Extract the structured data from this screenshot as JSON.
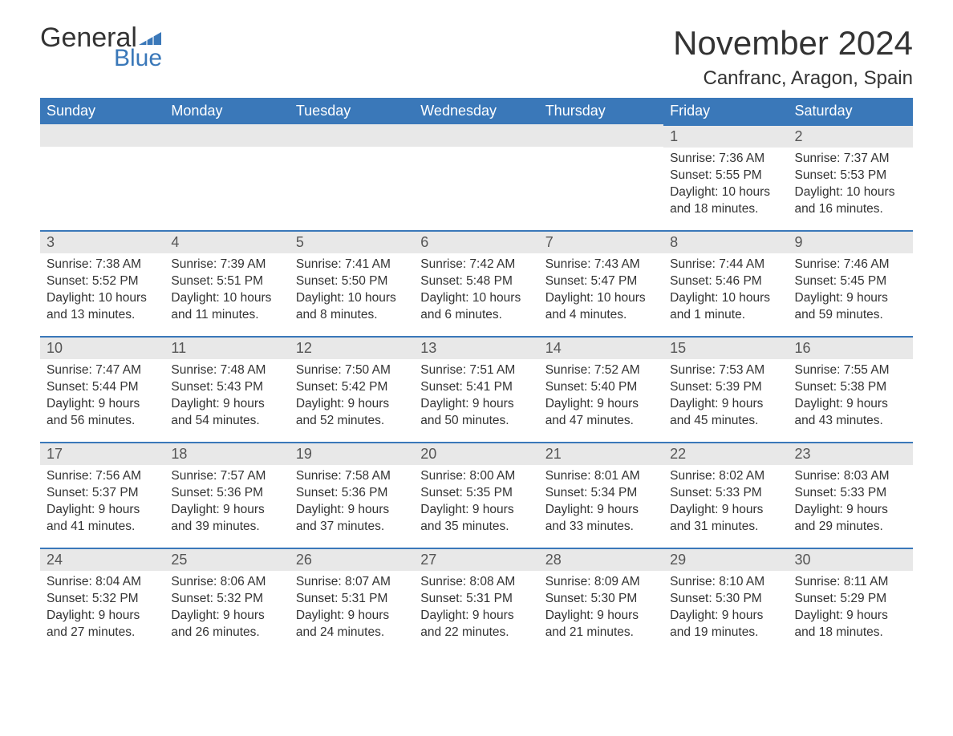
{
  "brand": {
    "word1": "General",
    "word2": "Blue",
    "text_color": "#333333",
    "accent_color": "#3a78b9"
  },
  "title": "November 2024",
  "location": "Canfranc, Aragon, Spain",
  "colors": {
    "header_bg": "#3a78b9",
    "header_text": "#ffffff",
    "daynum_bg": "#e8e8e8",
    "daynum_border": "#3a78b9",
    "body_text": "#333333",
    "page_bg": "#ffffff"
  },
  "weekdays": [
    "Sunday",
    "Monday",
    "Tuesday",
    "Wednesday",
    "Thursday",
    "Friday",
    "Saturday"
  ],
  "weeks": [
    [
      null,
      null,
      null,
      null,
      null,
      {
        "day": "1",
        "sunrise": "7:36 AM",
        "sunset": "5:55 PM",
        "daylight": "10 hours and 18 minutes."
      },
      {
        "day": "2",
        "sunrise": "7:37 AM",
        "sunset": "5:53 PM",
        "daylight": "10 hours and 16 minutes."
      }
    ],
    [
      {
        "day": "3",
        "sunrise": "7:38 AM",
        "sunset": "5:52 PM",
        "daylight": "10 hours and 13 minutes."
      },
      {
        "day": "4",
        "sunrise": "7:39 AM",
        "sunset": "5:51 PM",
        "daylight": "10 hours and 11 minutes."
      },
      {
        "day": "5",
        "sunrise": "7:41 AM",
        "sunset": "5:50 PM",
        "daylight": "10 hours and 8 minutes."
      },
      {
        "day": "6",
        "sunrise": "7:42 AM",
        "sunset": "5:48 PM",
        "daylight": "10 hours and 6 minutes."
      },
      {
        "day": "7",
        "sunrise": "7:43 AM",
        "sunset": "5:47 PM",
        "daylight": "10 hours and 4 minutes."
      },
      {
        "day": "8",
        "sunrise": "7:44 AM",
        "sunset": "5:46 PM",
        "daylight": "10 hours and 1 minute."
      },
      {
        "day": "9",
        "sunrise": "7:46 AM",
        "sunset": "5:45 PM",
        "daylight": "9 hours and 59 minutes."
      }
    ],
    [
      {
        "day": "10",
        "sunrise": "7:47 AM",
        "sunset": "5:44 PM",
        "daylight": "9 hours and 56 minutes."
      },
      {
        "day": "11",
        "sunrise": "7:48 AM",
        "sunset": "5:43 PM",
        "daylight": "9 hours and 54 minutes."
      },
      {
        "day": "12",
        "sunrise": "7:50 AM",
        "sunset": "5:42 PM",
        "daylight": "9 hours and 52 minutes."
      },
      {
        "day": "13",
        "sunrise": "7:51 AM",
        "sunset": "5:41 PM",
        "daylight": "9 hours and 50 minutes."
      },
      {
        "day": "14",
        "sunrise": "7:52 AM",
        "sunset": "5:40 PM",
        "daylight": "9 hours and 47 minutes."
      },
      {
        "day": "15",
        "sunrise": "7:53 AM",
        "sunset": "5:39 PM",
        "daylight": "9 hours and 45 minutes."
      },
      {
        "day": "16",
        "sunrise": "7:55 AM",
        "sunset": "5:38 PM",
        "daylight": "9 hours and 43 minutes."
      }
    ],
    [
      {
        "day": "17",
        "sunrise": "7:56 AM",
        "sunset": "5:37 PM",
        "daylight": "9 hours and 41 minutes."
      },
      {
        "day": "18",
        "sunrise": "7:57 AM",
        "sunset": "5:36 PM",
        "daylight": "9 hours and 39 minutes."
      },
      {
        "day": "19",
        "sunrise": "7:58 AM",
        "sunset": "5:36 PM",
        "daylight": "9 hours and 37 minutes."
      },
      {
        "day": "20",
        "sunrise": "8:00 AM",
        "sunset": "5:35 PM",
        "daylight": "9 hours and 35 minutes."
      },
      {
        "day": "21",
        "sunrise": "8:01 AM",
        "sunset": "5:34 PM",
        "daylight": "9 hours and 33 minutes."
      },
      {
        "day": "22",
        "sunrise": "8:02 AM",
        "sunset": "5:33 PM",
        "daylight": "9 hours and 31 minutes."
      },
      {
        "day": "23",
        "sunrise": "8:03 AM",
        "sunset": "5:33 PM",
        "daylight": "9 hours and 29 minutes."
      }
    ],
    [
      {
        "day": "24",
        "sunrise": "8:04 AM",
        "sunset": "5:32 PM",
        "daylight": "9 hours and 27 minutes."
      },
      {
        "day": "25",
        "sunrise": "8:06 AM",
        "sunset": "5:32 PM",
        "daylight": "9 hours and 26 minutes."
      },
      {
        "day": "26",
        "sunrise": "8:07 AM",
        "sunset": "5:31 PM",
        "daylight": "9 hours and 24 minutes."
      },
      {
        "day": "27",
        "sunrise": "8:08 AM",
        "sunset": "5:31 PM",
        "daylight": "9 hours and 22 minutes."
      },
      {
        "day": "28",
        "sunrise": "8:09 AM",
        "sunset": "5:30 PM",
        "daylight": "9 hours and 21 minutes."
      },
      {
        "day": "29",
        "sunrise": "8:10 AM",
        "sunset": "5:30 PM",
        "daylight": "9 hours and 19 minutes."
      },
      {
        "day": "30",
        "sunrise": "8:11 AM",
        "sunset": "5:29 PM",
        "daylight": "9 hours and 18 minutes."
      }
    ]
  ],
  "labels": {
    "sunrise": "Sunrise: ",
    "sunset": "Sunset: ",
    "daylight": "Daylight: "
  }
}
